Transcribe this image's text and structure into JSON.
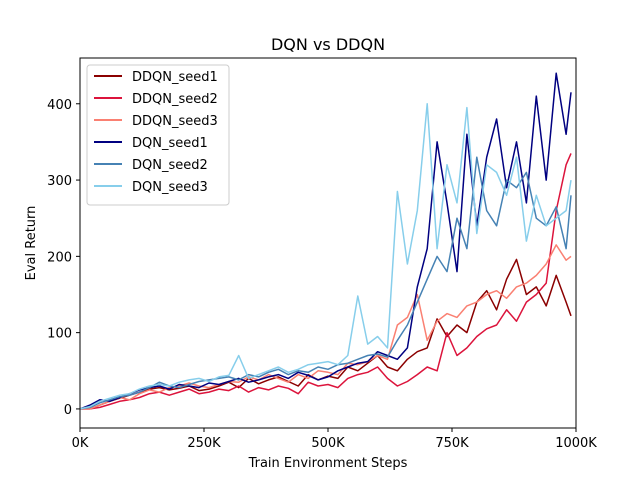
{
  "chart_data": {
    "type": "line",
    "title": "DQN vs DDQN",
    "xlabel": "Train Environment Steps",
    "ylabel": "Eval Return",
    "xlim": [
      0,
      1000000
    ],
    "ylim": [
      -25,
      460
    ],
    "x_ticks": [
      0,
      250000,
      500000,
      750000,
      1000000
    ],
    "x_tick_labels": [
      "0K",
      "250K",
      "500K",
      "750K",
      "1000K"
    ],
    "y_ticks": [
      0,
      100,
      200,
      300,
      400
    ],
    "y_tick_labels": [
      "0",
      "100",
      "200",
      "300",
      "400"
    ],
    "grid": false,
    "legend_position": "upper-left",
    "x": [
      0,
      20000,
      40000,
      60000,
      80000,
      100000,
      120000,
      140000,
      160000,
      180000,
      200000,
      220000,
      240000,
      260000,
      280000,
      300000,
      320000,
      340000,
      360000,
      380000,
      400000,
      420000,
      440000,
      460000,
      480000,
      500000,
      520000,
      540000,
      560000,
      580000,
      600000,
      620000,
      640000,
      660000,
      680000,
      700000,
      720000,
      740000,
      760000,
      780000,
      800000,
      820000,
      840000,
      860000,
      880000,
      900000,
      920000,
      940000,
      960000,
      980000,
      990000
    ],
    "series": [
      {
        "name": "DDQN_seed1",
        "color": "#8b0000",
        "values": [
          0,
          0,
          5,
          10,
          14,
          18,
          22,
          26,
          28,
          25,
          27,
          30,
          24,
          26,
          30,
          35,
          28,
          40,
          33,
          38,
          42,
          36,
          30,
          45,
          38,
          43,
          40,
          55,
          50,
          60,
          70,
          55,
          50,
          65,
          75,
          80,
          118,
          95,
          110,
          100,
          140,
          155,
          130,
          170,
          196,
          150,
          160,
          135,
          175,
          140,
          122
        ]
      },
      {
        "name": "DDQN_seed2",
        "color": "#dc143c",
        "values": [
          0,
          0,
          2,
          6,
          10,
          12,
          15,
          20,
          22,
          18,
          22,
          26,
          20,
          22,
          26,
          24,
          30,
          22,
          28,
          25,
          30,
          27,
          20,
          35,
          30,
          32,
          28,
          40,
          45,
          48,
          55,
          40,
          30,
          36,
          45,
          55,
          50,
          100,
          70,
          80,
          95,
          105,
          110,
          130,
          115,
          140,
          150,
          165,
          260,
          320,
          335
        ]
      },
      {
        "name": "DDQN_seed3",
        "color": "#fa8072",
        "values": [
          0,
          0,
          5,
          10,
          15,
          12,
          20,
          25,
          22,
          28,
          30,
          34,
          30,
          28,
          32,
          36,
          35,
          42,
          38,
          45,
          40,
          35,
          45,
          40,
          50,
          48,
          45,
          60,
          58,
          62,
          70,
          65,
          110,
          120,
          150,
          90,
          115,
          125,
          120,
          135,
          140,
          150,
          155,
          145,
          160,
          165,
          175,
          190,
          215,
          195,
          200
        ]
      },
      {
        "name": "DQN_seed1",
        "color": "#000080",
        "values": [
          0,
          5,
          12,
          10,
          15,
          20,
          25,
          28,
          30,
          26,
          32,
          30,
          28,
          34,
          32,
          36,
          40,
          35,
          38,
          42,
          45,
          40,
          48,
          44,
          38,
          42,
          50,
          55,
          60,
          62,
          75,
          70,
          65,
          80,
          160,
          210,
          350,
          270,
          180,
          360,
          240,
          330,
          380,
          290,
          350,
          270,
          410,
          300,
          440,
          360,
          415
        ]
      },
      {
        "name": "DQN_seed2",
        "color": "#4682b4",
        "values": [
          0,
          2,
          8,
          12,
          16,
          18,
          22,
          28,
          35,
          30,
          28,
          32,
          36,
          38,
          40,
          42,
          38,
          45,
          42,
          48,
          52,
          45,
          50,
          48,
          55,
          52,
          58,
          60,
          65,
          70,
          72,
          68,
          90,
          110,
          140,
          170,
          200,
          180,
          250,
          210,
          330,
          260,
          240,
          300,
          290,
          310,
          250,
          240,
          265,
          210,
          280
        ]
      },
      {
        "name": "DQN_seed3",
        "color": "#87ceeb",
        "values": [
          0,
          3,
          10,
          14,
          18,
          20,
          26,
          30,
          32,
          30,
          35,
          38,
          40,
          36,
          42,
          44,
          70,
          40,
          45,
          50,
          55,
          48,
          52,
          58,
          60,
          62,
          58,
          70,
          148,
          85,
          95,
          80,
          285,
          190,
          260,
          400,
          210,
          320,
          270,
          395,
          230,
          320,
          310,
          280,
          330,
          220,
          280,
          240,
          250,
          260,
          300
        ]
      }
    ]
  }
}
